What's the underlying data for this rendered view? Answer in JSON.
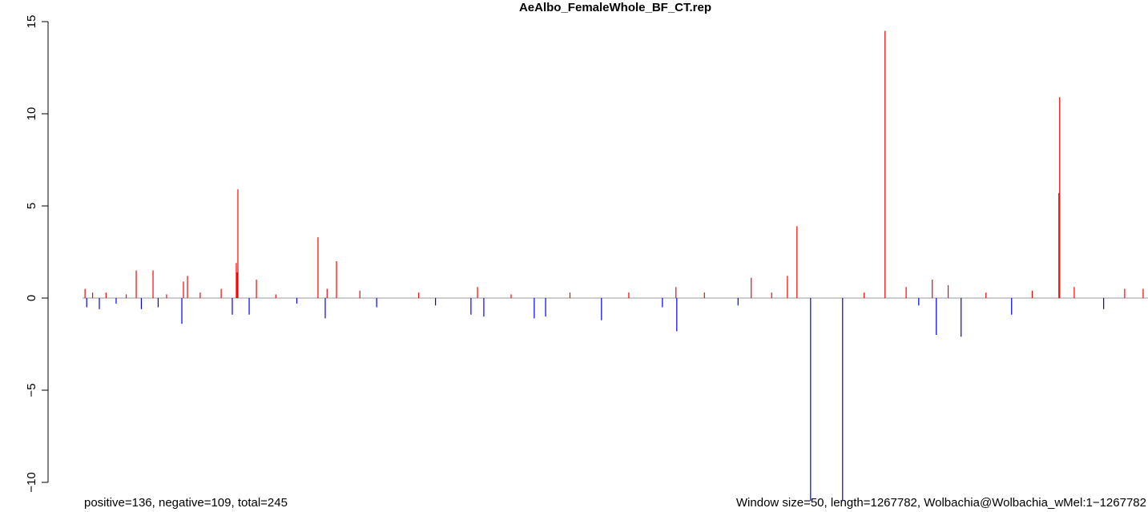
{
  "chart_data": {
    "type": "bar",
    "title": "AeAlbo_FemaleWhole_BF_CT.rep",
    "annotations": [
      "positive=136, negative=109, total=245",
      "Window size=50, length=1267782, Wolbachia@Wolbachia_wMel:1−1267782"
    ],
    "x": [
      3000,
      5000,
      12000,
      20000,
      28000,
      40000,
      52000,
      63900,
      70000,
      83900,
      90000,
      100000,
      118200,
      120100,
      124900,
      140000,
      165000,
      178200,
      183000,
      184000,
      184900,
      198300,
      206900,
      230000,
      255000,
      280200,
      288800,
      291000,
      302200,
      330000,
      350000,
      400000,
      420000,
      462200,
      470000,
      477500,
      510000,
      537500,
      551000,
      580000,
      617500,
      650000,
      690000,
      706100,
      707100,
      740000,
      780000,
      795700,
      820000,
      838700,
      850100,
      866300,
      904400,
      930000,
      954900,
      980000,
      995000,
      1011100,
      1015900,
      1030000,
      1045400,
      1075000,
      1105500,
      1130000,
      1161700,
      1162700,
      1180000,
      1215000,
      1240000,
      1262000
    ],
    "values": [
      0.5,
      -0.5,
      0.3,
      -0.6,
      0.3,
      -0.3,
      0.2,
      1.5,
      -0.6,
      1.5,
      -0.5,
      0.2,
      -1.4,
      0.9,
      1.2,
      0.3,
      0.5,
      -0.9,
      1.9,
      1.4,
      5.9,
      -0.9,
      1.0,
      0.2,
      -0.3,
      3.3,
      -1.1,
      0.5,
      2.0,
      0.4,
      -0.5,
      0.3,
      -0.4,
      -0.9,
      0.6,
      -1.0,
      0.2,
      -1.1,
      -1.0,
      0.3,
      -1.2,
      0.3,
      -0.5,
      0.6,
      -1.8,
      0.3,
      -0.4,
      1.1,
      0.3,
      1.2,
      3.9,
      -11,
      -11,
      0.3,
      14.5,
      0.6,
      -0.4,
      1.0,
      -2.0,
      0.7,
      -2.1,
      0.3,
      -0.9,
      0.4,
      5.7,
      10.9,
      0.6,
      -0.6,
      0.5,
      0.5
    ],
    "colors": {
      "positive": "#ff0000",
      "negative": "#0000ff"
    },
    "baseline_color": "#999999",
    "xlim": [
      0,
      1267782
    ],
    "ylim": [
      -11.5,
      15.2
    ],
    "yticks": [
      {
        "value": -10,
        "label": "−10"
      },
      {
        "value": -5,
        "label": "−5"
      },
      0,
      5,
      10,
      15
    ]
  }
}
